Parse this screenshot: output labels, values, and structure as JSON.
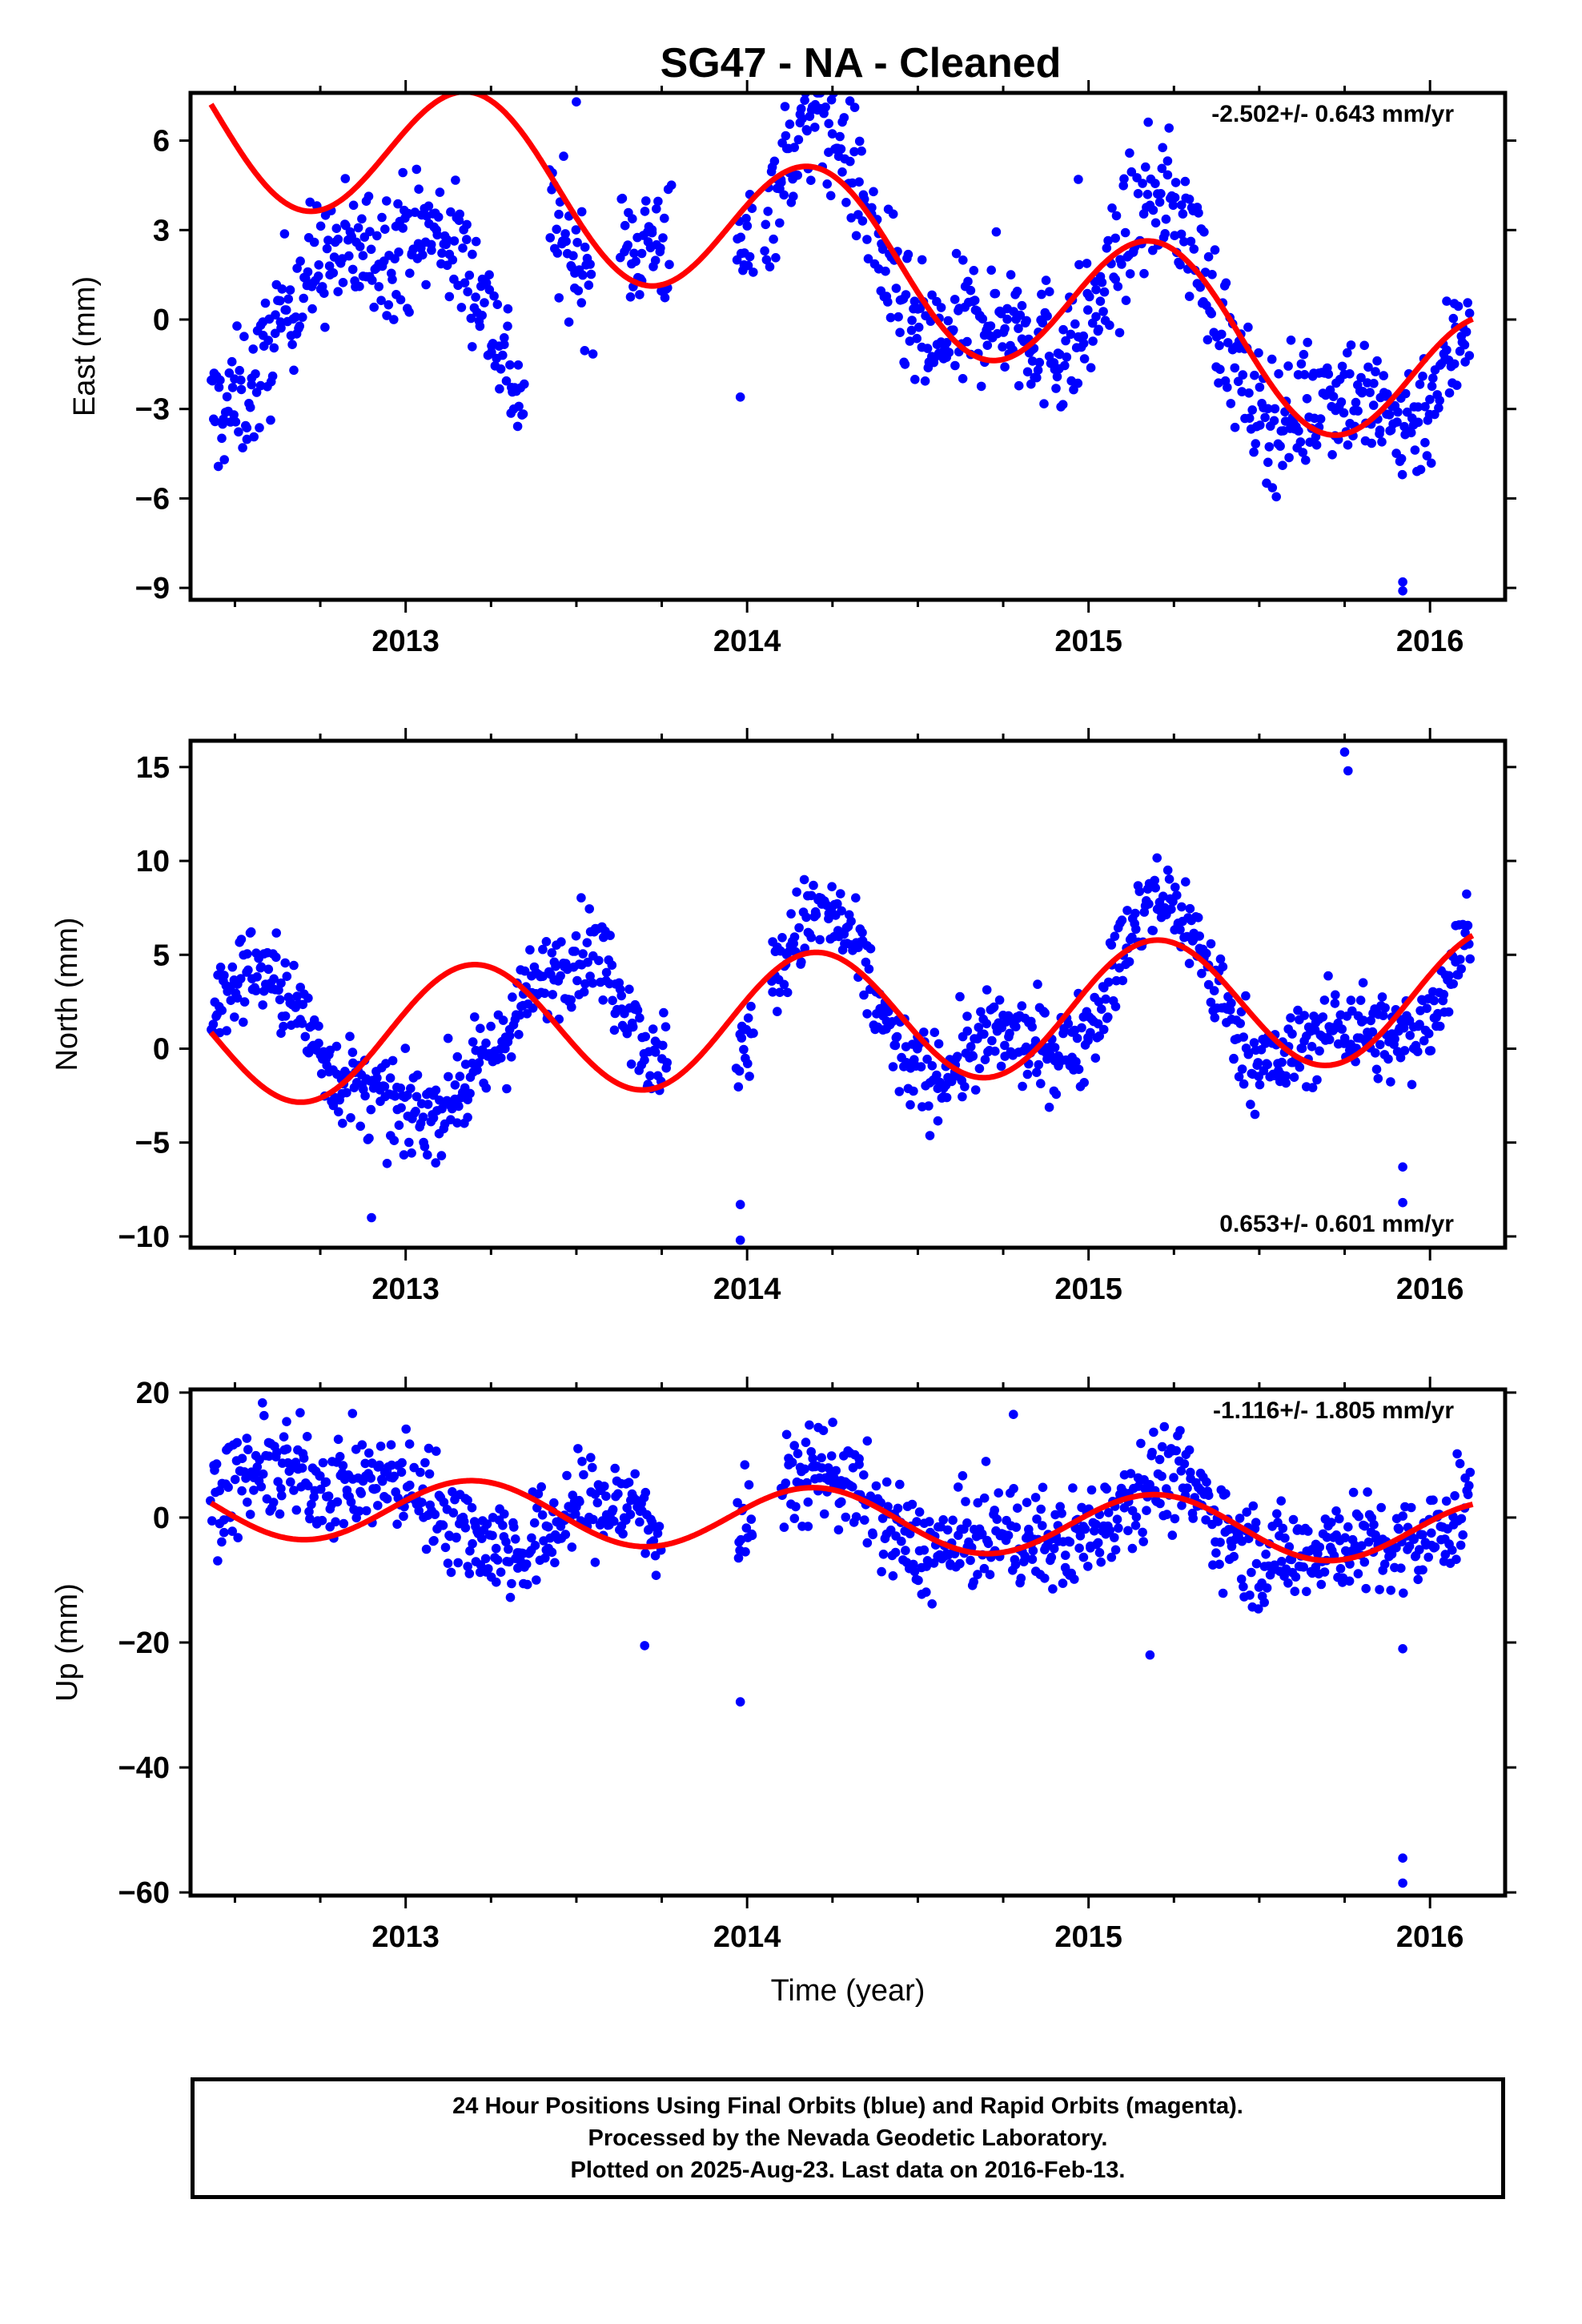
{
  "title": "SG47  - NA - Cleaned",
  "footer": {
    "line1": "24 Hour Positions Using Final Orbits (blue) and Rapid Orbits (magenta).",
    "line2": "Processed by the Nevada Geodetic Laboratory.",
    "line3": "Plotted on 2025-Aug-23. Last data on 2016-Feb-13."
  },
  "colors": {
    "data_points": "#0000ff",
    "model_fit": "#ff0000",
    "frame": "#000000"
  },
  "chart_data": [
    {
      "type": "scatter",
      "title": "SG47  - NA - Cleaned",
      "xlabel": "",
      "ylabel": "East (mm)",
      "rate_label": "-2.502+/- 0.643 mm/yr",
      "rate_position": "top-right",
      "xlim": [
        2012.37,
        2016.22
      ],
      "ylim": [
        -9.4,
        7.6
      ],
      "x_ticks": [
        2013,
        2014,
        2015,
        2016
      ],
      "x_tick_labels": [
        "2013",
        "2014",
        "2015",
        "2016"
      ],
      "y_ticks": [
        6,
        3,
        0,
        -3,
        -6,
        -9
      ],
      "y_tick_labels": [
        "6",
        "3",
        "0",
        "−3",
        "−6",
        "−9"
      ],
      "grid": false,
      "series": [
        {
          "kind": "points",
          "approx": true,
          "anchors": [
            [
              2012.43,
              -3.2
            ],
            [
              2012.5,
              -2.8
            ],
            [
              2012.57,
              -2.0
            ],
            [
              2012.65,
              0.5
            ],
            [
              2012.75,
              2.0
            ],
            [
              2012.9,
              2.3
            ],
            [
              2013.1,
              3.0
            ],
            [
              2013.2,
              1.5
            ],
            [
              2013.27,
              -0.5
            ],
            [
              2013.33,
              -2.5
            ],
            [
              2013.35,
              -2.8
            ]
          ],
          "segments": [
            [
              2012.43,
              2013.35
            ],
            [
              2013.42,
              2013.55
            ],
            [
              2013.63,
              2013.78
            ],
            [
              2013.97,
              2014.02
            ],
            [
              2014.05,
              2014.98
            ],
            [
              2014.98,
              2016.12
            ]
          ],
          "spread": 1.1,
          "outliers": [
            [
              2013.98,
              -2.6
            ],
            [
              2015.92,
              -8.8
            ],
            [
              2015.92,
              -9.1
            ],
            [
              2014.1,
              4.6
            ],
            [
              2014.97,
              4.7
            ],
            [
              2013.5,
              7.3
            ]
          ]
        },
        {
          "kind": "fit",
          "amplitude": 2.6,
          "offset": 3.0,
          "rate": -2.502
        }
      ]
    },
    {
      "type": "scatter",
      "title": "",
      "xlabel": "",
      "ylabel": "North (mm)",
      "rate_label": "0.653+/- 0.601 mm/yr",
      "rate_position": "bottom-right",
      "xlim": [
        2012.37,
        2016.22
      ],
      "ylim": [
        -10.6,
        16.4
      ],
      "x_ticks": [
        2013,
        2014,
        2015,
        2016
      ],
      "x_tick_labels": [
        "2013",
        "2014",
        "2015",
        "2016"
      ],
      "y_ticks": [
        15,
        10,
        5,
        0,
        -5,
        -10
      ],
      "y_tick_labels": [
        "15",
        "10",
        "5",
        "0",
        "−5",
        "−10"
      ],
      "grid": false,
      "series": [
        {
          "kind": "points",
          "approx": true,
          "anchors": [
            [
              2012.43,
              1.8
            ],
            [
              2012.55,
              4.5
            ],
            [
              2012.65,
              3.0
            ],
            [
              2012.8,
              -1.5
            ],
            [
              2013.0,
              -3.5
            ],
            [
              2013.1,
              -3.2
            ],
            [
              2013.25,
              -0.5
            ],
            [
              2013.35,
              2.5
            ],
            [
              2013.45,
              4.5
            ],
            [
              2013.55,
              5.5
            ],
            [
              2013.65,
              2.5
            ],
            [
              2013.75,
              -2.0
            ]
          ],
          "segments": [
            [
              2012.43,
              2013.77
            ],
            [
              2013.97,
              2014.02
            ],
            [
              2014.07,
              2014.98
            ],
            [
              2014.98,
              2016.12
            ]
          ],
          "spread": 1.2,
          "outliers": [
            [
              2012.9,
              -9.0
            ],
            [
              2013.98,
              -8.3
            ],
            [
              2013.98,
              -10.2
            ],
            [
              2015.92,
              -6.3
            ],
            [
              2015.92,
              -8.2
            ],
            [
              2015.75,
              15.8
            ],
            [
              2015.76,
              14.8
            ]
          ]
        },
        {
          "kind": "fit",
          "amplitude": 3.5,
          "offset": 1.5,
          "rate": 0.653
        }
      ]
    },
    {
      "type": "scatter",
      "title": "",
      "xlabel": "Time (year)",
      "ylabel": "Up (mm)",
      "rate_label": "-1.116+/- 1.805 mm/yr",
      "rate_position": "top-right",
      "xlim": [
        2012.37,
        2016.22
      ],
      "ylim": [
        -60.5,
        20.5
      ],
      "x_ticks": [
        2013,
        2014,
        2015,
        2016
      ],
      "x_tick_labels": [
        "2013",
        "2014",
        "2015",
        "2016"
      ],
      "y_ticks": [
        20,
        0,
        -20,
        -40,
        -60
      ],
      "y_tick_labels": [
        "20",
        "0",
        "−20",
        "−40",
        "−60"
      ],
      "grid": false,
      "series": [
        {
          "kind": "points",
          "approx": true,
          "anchors": [
            [
              2012.43,
              3
            ],
            [
              2012.6,
              8
            ],
            [
              2012.8,
              5
            ],
            [
              2013.0,
              6
            ],
            [
              2013.2,
              -3
            ],
            [
              2013.35,
              -6
            ],
            [
              2013.5,
              2
            ],
            [
              2013.7,
              2
            ]
          ],
          "segments": [
            [
              2012.43,
              2013.75
            ],
            [
              2013.97,
              2014.02
            ],
            [
              2014.1,
              2016.12
            ]
          ],
          "spread": 4.0,
          "outliers": [
            [
              2013.7,
              -20.5
            ],
            [
              2013.98,
              -29.5
            ],
            [
              2015.18,
              -22.0
            ],
            [
              2015.92,
              -21.0
            ],
            [
              2015.92,
              -54.5
            ],
            [
              2015.92,
              -58.5
            ],
            [
              2014.78,
              16.5
            ]
          ]
        },
        {
          "kind": "fit",
          "amplitude": 5.0,
          "offset": 0.0,
          "rate": -1.116
        }
      ]
    }
  ]
}
